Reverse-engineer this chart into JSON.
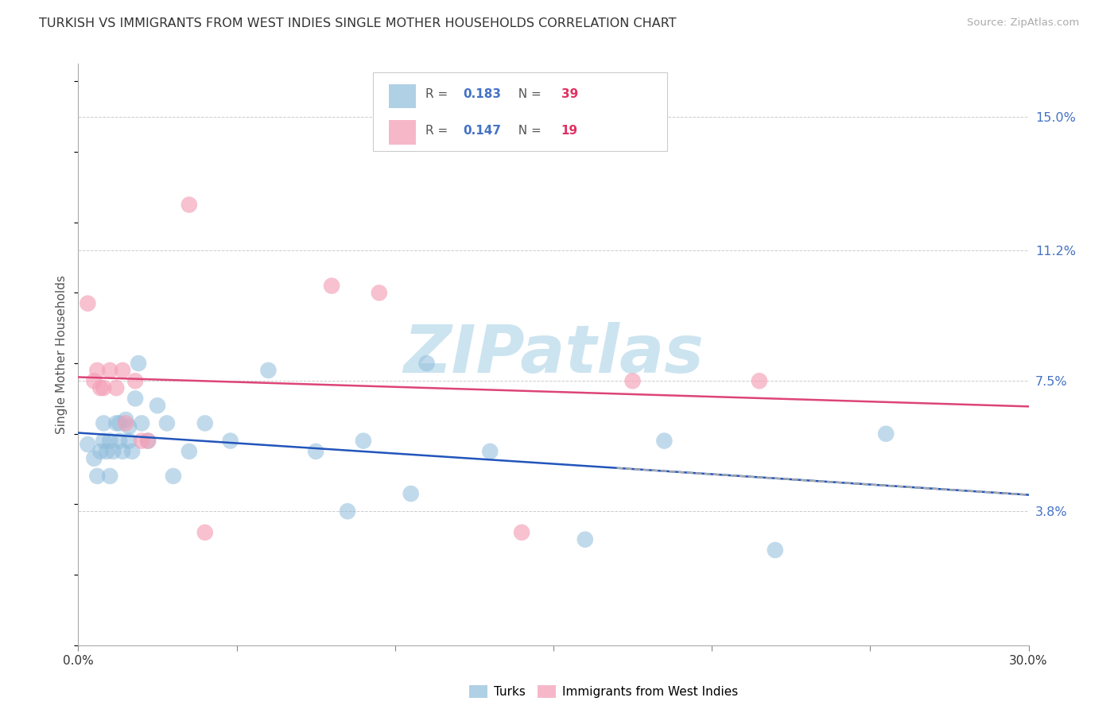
{
  "title": "TURKISH VS IMMIGRANTS FROM WEST INDIES SINGLE MOTHER HOUSEHOLDS CORRELATION CHART",
  "source": "Source: ZipAtlas.com",
  "ylabel": "Single Mother Households",
  "xlim": [
    0.0,
    0.3
  ],
  "ylim": [
    0.0,
    0.165
  ],
  "ytick_labels": [
    "3.8%",
    "7.5%",
    "11.2%",
    "15.0%"
  ],
  "ytick_values": [
    0.038,
    0.075,
    0.112,
    0.15
  ],
  "legend_turks_R": "0.183",
  "legend_turks_N": "39",
  "legend_wi_R": "0.147",
  "legend_wi_N": "19",
  "turks_color": "#8fbcdb",
  "wi_color": "#f4a0b8",
  "turks_line_color": "#2255bb",
  "wi_line_color": "#dd4477",
  "background_color": "#ffffff",
  "grid_color": "#cccccc",
  "title_fontsize": 11.5,
  "watermark_text": "ZIPatlas",
  "watermark_color": "#cce4f0",
  "turks_x": [
    0.003,
    0.005,
    0.006,
    0.007,
    0.008,
    0.008,
    0.009,
    0.01,
    0.01,
    0.011,
    0.012,
    0.013,
    0.013,
    0.014,
    0.015,
    0.016,
    0.016,
    0.017,
    0.018,
    0.019,
    0.02,
    0.022,
    0.025,
    0.028,
    0.03,
    0.035,
    0.04,
    0.048,
    0.06,
    0.075,
    0.09,
    0.11,
    0.13,
    0.16,
    0.185,
    0.22,
    0.255,
    0.085,
    0.105
  ],
  "turks_y": [
    0.057,
    0.053,
    0.048,
    0.055,
    0.058,
    0.063,
    0.055,
    0.058,
    0.048,
    0.055,
    0.063,
    0.058,
    0.063,
    0.055,
    0.064,
    0.062,
    0.058,
    0.055,
    0.07,
    0.08,
    0.063,
    0.058,
    0.068,
    0.063,
    0.048,
    0.055,
    0.063,
    0.058,
    0.078,
    0.055,
    0.058,
    0.08,
    0.055,
    0.03,
    0.058,
    0.027,
    0.06,
    0.038,
    0.043
  ],
  "wi_x": [
    0.003,
    0.005,
    0.006,
    0.007,
    0.008,
    0.01,
    0.012,
    0.014,
    0.015,
    0.018,
    0.02,
    0.022,
    0.035,
    0.04,
    0.08,
    0.095,
    0.14,
    0.175,
    0.215
  ],
  "wi_y": [
    0.097,
    0.075,
    0.078,
    0.073,
    0.073,
    0.078,
    0.073,
    0.078,
    0.063,
    0.075,
    0.058,
    0.058,
    0.125,
    0.032,
    0.102,
    0.1,
    0.032,
    0.075,
    0.075
  ]
}
